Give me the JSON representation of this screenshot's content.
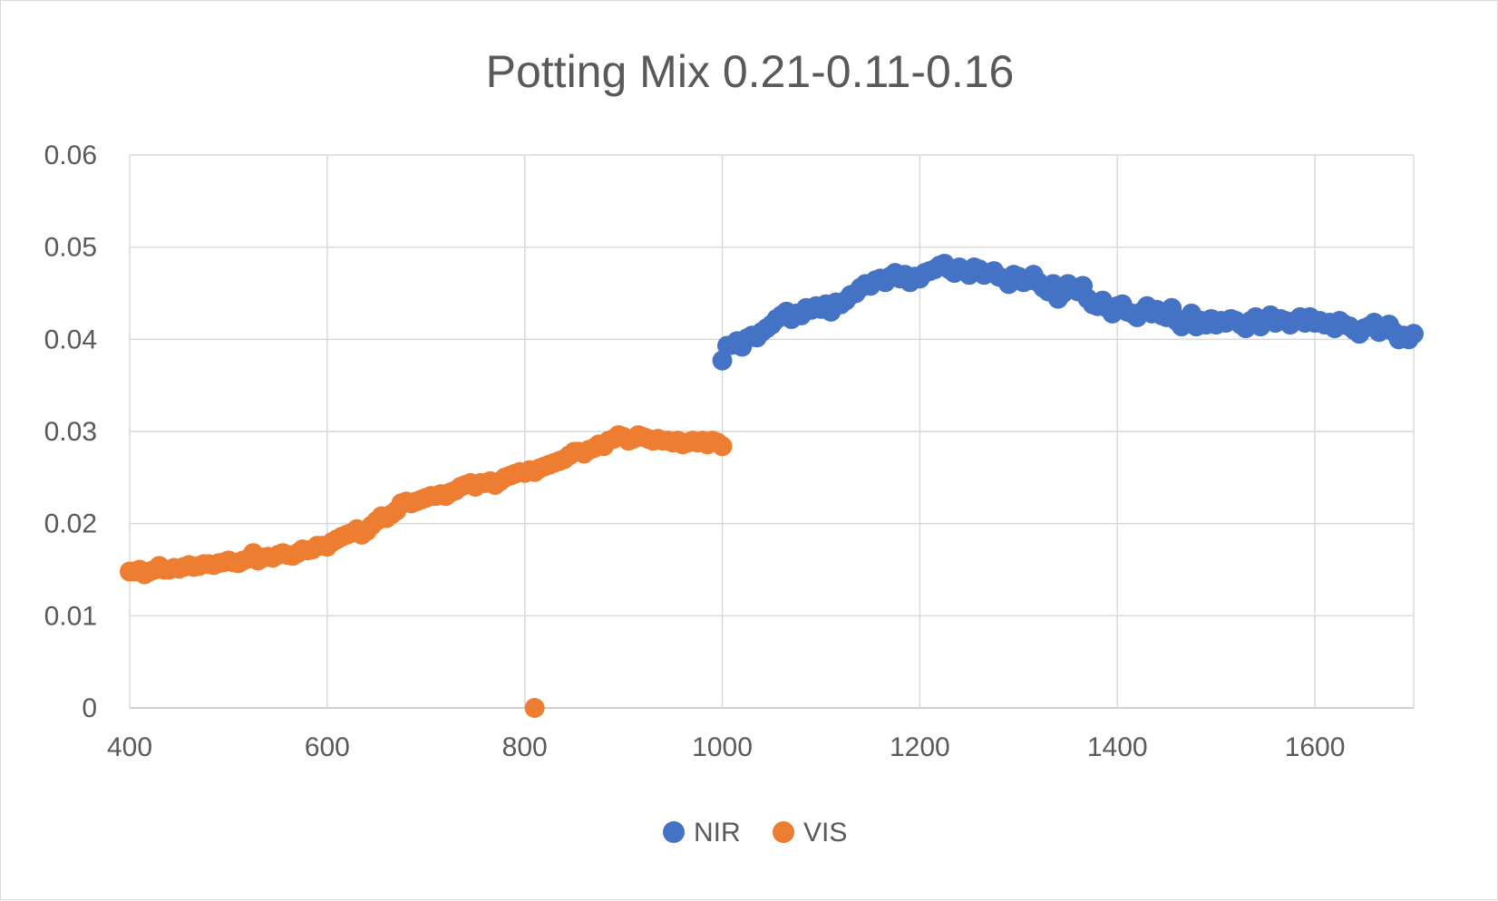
{
  "chart_data": {
    "type": "scatter",
    "title": "Potting Mix 0.21-0.11-0.16",
    "xlabel": "",
    "ylabel": "",
    "xlim": [
      400,
      1700
    ],
    "ylim": [
      0,
      0.06
    ],
    "x_ticks": [
      400,
      600,
      800,
      1000,
      1200,
      1400,
      1600
    ],
    "x_tick_labels": [
      "400",
      "600",
      "800",
      "1000",
      "1200",
      "1400",
      "1600"
    ],
    "y_ticks": [
      0,
      0.01,
      0.02,
      0.03,
      0.04,
      0.05,
      0.06
    ],
    "y_tick_labels": [
      "0",
      "0.01",
      "0.02",
      "0.03",
      "0.04",
      "0.05",
      "0.06"
    ],
    "grid": true,
    "legend_position": "bottom",
    "series": [
      {
        "name": "NIR",
        "color": "#4472c4",
        "points": [
          [
            1000,
            0.0377
          ],
          [
            1005,
            0.0393
          ],
          [
            1010,
            0.0394
          ],
          [
            1015,
            0.0398
          ],
          [
            1020,
            0.0392
          ],
          [
            1025,
            0.0401
          ],
          [
            1030,
            0.0404
          ],
          [
            1035,
            0.0402
          ],
          [
            1040,
            0.0408
          ],
          [
            1045,
            0.0412
          ],
          [
            1050,
            0.0416
          ],
          [
            1055,
            0.0422
          ],
          [
            1060,
            0.0426
          ],
          [
            1065,
            0.043
          ],
          [
            1070,
            0.0422
          ],
          [
            1075,
            0.0428
          ],
          [
            1080,
            0.0426
          ],
          [
            1085,
            0.0434
          ],
          [
            1090,
            0.0432
          ],
          [
            1095,
            0.0436
          ],
          [
            1100,
            0.0433
          ],
          [
            1105,
            0.0438
          ],
          [
            1110,
            0.043
          ],
          [
            1115,
            0.044
          ],
          [
            1120,
            0.0438
          ],
          [
            1125,
            0.0442
          ],
          [
            1130,
            0.0448
          ],
          [
            1135,
            0.045
          ],
          [
            1140,
            0.0456
          ],
          [
            1145,
            0.046
          ],
          [
            1150,
            0.0458
          ],
          [
            1155,
            0.0464
          ],
          [
            1160,
            0.0466
          ],
          [
            1165,
            0.0462
          ],
          [
            1170,
            0.0468
          ],
          [
            1175,
            0.0472
          ],
          [
            1180,
            0.0466
          ],
          [
            1185,
            0.047
          ],
          [
            1190,
            0.0462
          ],
          [
            1195,
            0.0468
          ],
          [
            1200,
            0.0466
          ],
          [
            1205,
            0.0472
          ],
          [
            1210,
            0.0474
          ],
          [
            1215,
            0.0476
          ],
          [
            1220,
            0.048
          ],
          [
            1225,
            0.0482
          ],
          [
            1230,
            0.0476
          ],
          [
            1235,
            0.0472
          ],
          [
            1240,
            0.0478
          ],
          [
            1245,
            0.0474
          ],
          [
            1250,
            0.047
          ],
          [
            1255,
            0.0478
          ],
          [
            1260,
            0.0476
          ],
          [
            1265,
            0.047
          ],
          [
            1270,
            0.0472
          ],
          [
            1275,
            0.0474
          ],
          [
            1280,
            0.0468
          ],
          [
            1285,
            0.0466
          ],
          [
            1290,
            0.046
          ],
          [
            1295,
            0.047
          ],
          [
            1300,
            0.0468
          ],
          [
            1305,
            0.0462
          ],
          [
            1310,
            0.0464
          ],
          [
            1315,
            0.047
          ],
          [
            1320,
            0.0462
          ],
          [
            1325,
            0.0456
          ],
          [
            1330,
            0.0452
          ],
          [
            1335,
            0.046
          ],
          [
            1340,
            0.0444
          ],
          [
            1345,
            0.045
          ],
          [
            1350,
            0.046
          ],
          [
            1355,
            0.0456
          ],
          [
            1360,
            0.0452
          ],
          [
            1365,
            0.0458
          ],
          [
            1370,
            0.0444
          ],
          [
            1375,
            0.0438
          ],
          [
            1380,
            0.0436
          ],
          [
            1385,
            0.0442
          ],
          [
            1390,
            0.0434
          ],
          [
            1395,
            0.0428
          ],
          [
            1400,
            0.0436
          ],
          [
            1405,
            0.0438
          ],
          [
            1410,
            0.043
          ],
          [
            1415,
            0.0428
          ],
          [
            1420,
            0.0424
          ],
          [
            1425,
            0.043
          ],
          [
            1430,
            0.0436
          ],
          [
            1435,
            0.0428
          ],
          [
            1440,
            0.0432
          ],
          [
            1445,
            0.0426
          ],
          [
            1450,
            0.0424
          ],
          [
            1455,
            0.0434
          ],
          [
            1460,
            0.042
          ],
          [
            1465,
            0.0414
          ],
          [
            1470,
            0.0422
          ],
          [
            1475,
            0.0428
          ],
          [
            1480,
            0.0414
          ],
          [
            1485,
            0.042
          ],
          [
            1490,
            0.0416
          ],
          [
            1495,
            0.0422
          ],
          [
            1500,
            0.0416
          ],
          [
            1505,
            0.042
          ],
          [
            1510,
            0.0418
          ],
          [
            1515,
            0.0422
          ],
          [
            1520,
            0.042
          ],
          [
            1525,
            0.0416
          ],
          [
            1530,
            0.0412
          ],
          [
            1535,
            0.042
          ],
          [
            1540,
            0.0424
          ],
          [
            1545,
            0.0414
          ],
          [
            1550,
            0.042
          ],
          [
            1555,
            0.0426
          ],
          [
            1560,
            0.0418
          ],
          [
            1565,
            0.0422
          ],
          [
            1570,
            0.042
          ],
          [
            1575,
            0.0416
          ],
          [
            1580,
            0.042
          ],
          [
            1585,
            0.0424
          ],
          [
            1590,
            0.0418
          ],
          [
            1595,
            0.0424
          ],
          [
            1600,
            0.0418
          ],
          [
            1605,
            0.042
          ],
          [
            1610,
            0.0416
          ],
          [
            1615,
            0.0418
          ],
          [
            1620,
            0.0412
          ],
          [
            1625,
            0.042
          ],
          [
            1630,
            0.0416
          ],
          [
            1635,
            0.0414
          ],
          [
            1640,
            0.041
          ],
          [
            1645,
            0.0406
          ],
          [
            1650,
            0.0412
          ],
          [
            1655,
            0.0414
          ],
          [
            1660,
            0.0418
          ],
          [
            1665,
            0.0408
          ],
          [
            1670,
            0.0412
          ],
          [
            1675,
            0.0416
          ],
          [
            1680,
            0.0408
          ],
          [
            1685,
            0.04
          ],
          [
            1690,
            0.0404
          ],
          [
            1695,
            0.04
          ],
          [
            1700,
            0.0406
          ]
        ]
      },
      {
        "name": "VIS",
        "color": "#ed7d31",
        "points": [
          [
            400,
            0.0148
          ],
          [
            405,
            0.0148
          ],
          [
            410,
            0.015
          ],
          [
            415,
            0.0145
          ],
          [
            420,
            0.0148
          ],
          [
            425,
            0.015
          ],
          [
            430,
            0.0154
          ],
          [
            435,
            0.015
          ],
          [
            440,
            0.015
          ],
          [
            445,
            0.0152
          ],
          [
            450,
            0.0151
          ],
          [
            455,
            0.0153
          ],
          [
            460,
            0.0155
          ],
          [
            465,
            0.0153
          ],
          [
            470,
            0.0154
          ],
          [
            475,
            0.0156
          ],
          [
            480,
            0.0156
          ],
          [
            485,
            0.0155
          ],
          [
            490,
            0.0157
          ],
          [
            495,
            0.0158
          ],
          [
            500,
            0.016
          ],
          [
            505,
            0.0158
          ],
          [
            510,
            0.0157
          ],
          [
            515,
            0.016
          ],
          [
            520,
            0.0162
          ],
          [
            525,
            0.0168
          ],
          [
            530,
            0.016
          ],
          [
            535,
            0.0163
          ],
          [
            540,
            0.0164
          ],
          [
            545,
            0.0163
          ],
          [
            550,
            0.0166
          ],
          [
            555,
            0.0168
          ],
          [
            560,
            0.0166
          ],
          [
            565,
            0.0165
          ],
          [
            570,
            0.0168
          ],
          [
            575,
            0.0172
          ],
          [
            580,
            0.0171
          ],
          [
            585,
            0.0172
          ],
          [
            590,
            0.0176
          ],
          [
            595,
            0.0176
          ],
          [
            600,
            0.0175
          ],
          [
            605,
            0.018
          ],
          [
            610,
            0.0183
          ],
          [
            615,
            0.0186
          ],
          [
            620,
            0.0188
          ],
          [
            625,
            0.019
          ],
          [
            630,
            0.0194
          ],
          [
            635,
            0.0188
          ],
          [
            640,
            0.0192
          ],
          [
            645,
            0.0198
          ],
          [
            650,
            0.0203
          ],
          [
            655,
            0.0208
          ],
          [
            660,
            0.0206
          ],
          [
            665,
            0.021
          ],
          [
            670,
            0.0214
          ],
          [
            675,
            0.0222
          ],
          [
            680,
            0.0224
          ],
          [
            685,
            0.0222
          ],
          [
            690,
            0.0224
          ],
          [
            695,
            0.0226
          ],
          [
            700,
            0.0228
          ],
          [
            705,
            0.023
          ],
          [
            710,
            0.023
          ],
          [
            715,
            0.0232
          ],
          [
            720,
            0.023
          ],
          [
            725,
            0.0234
          ],
          [
            730,
            0.0236
          ],
          [
            735,
            0.024
          ],
          [
            740,
            0.0242
          ],
          [
            745,
            0.0244
          ],
          [
            750,
            0.024
          ],
          [
            755,
            0.0244
          ],
          [
            760,
            0.0244
          ],
          [
            765,
            0.0246
          ],
          [
            770,
            0.0242
          ],
          [
            775,
            0.0246
          ],
          [
            780,
            0.025
          ],
          [
            785,
            0.0252
          ],
          [
            790,
            0.0254
          ],
          [
            795,
            0.0256
          ],
          [
            800,
            0.0255
          ],
          [
            805,
            0.0258
          ],
          [
            810,
            0.0256
          ],
          [
            815,
            0.026
          ],
          [
            820,
            0.0262
          ],
          [
            825,
            0.0264
          ],
          [
            830,
            0.0266
          ],
          [
            835,
            0.0268
          ],
          [
            840,
            0.027
          ],
          [
            845,
            0.0274
          ],
          [
            850,
            0.0278
          ],
          [
            855,
            0.0278
          ],
          [
            860,
            0.0276
          ],
          [
            865,
            0.028
          ],
          [
            870,
            0.0282
          ],
          [
            875,
            0.0286
          ],
          [
            880,
            0.0284
          ],
          [
            885,
            0.029
          ],
          [
            890,
            0.0292
          ],
          [
            895,
            0.0296
          ],
          [
            900,
            0.0294
          ],
          [
            905,
            0.029
          ],
          [
            910,
            0.0292
          ],
          [
            915,
            0.0296
          ],
          [
            920,
            0.0294
          ],
          [
            925,
            0.0292
          ],
          [
            930,
            0.029
          ],
          [
            935,
            0.0292
          ],
          [
            940,
            0.029
          ],
          [
            945,
            0.029
          ],
          [
            950,
            0.0288
          ],
          [
            955,
            0.029
          ],
          [
            960,
            0.0286
          ],
          [
            965,
            0.0288
          ],
          [
            970,
            0.029
          ],
          [
            975,
            0.0288
          ],
          [
            980,
            0.029
          ],
          [
            985,
            0.0286
          ],
          [
            990,
            0.029
          ],
          [
            995,
            0.0288
          ],
          [
            1000,
            0.0284
          ],
          [
            810,
            0.0
          ]
        ]
      }
    ]
  }
}
